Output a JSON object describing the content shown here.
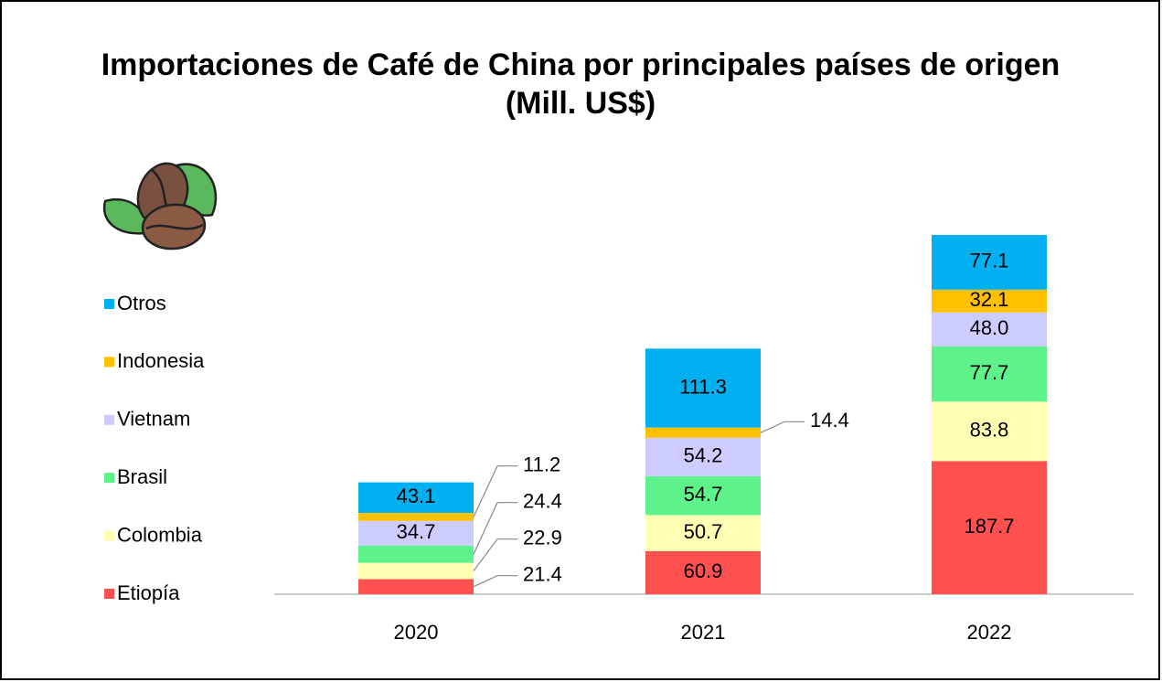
{
  "chart_data": {
    "type": "stacked_bar",
    "title": "Importaciones de Café de China por principales países de origen (Mill. US$)",
    "categories": [
      "2020",
      "2021",
      "2022"
    ],
    "series": [
      {
        "name": "Etiopía",
        "color": "#ff5050",
        "values": [
          21.4,
          60.9,
          187.7
        ],
        "value_labels": [
          "21.4",
          "60.9",
          "187.7"
        ]
      },
      {
        "name": "Colombia",
        "color": "#ffffb3",
        "values": [
          22.9,
          50.7,
          83.8
        ],
        "value_labels": [
          "22.9",
          "50.7",
          "83.8"
        ]
      },
      {
        "name": "Brasil",
        "color": "#5ef28a",
        "values": [
          24.4,
          54.7,
          77.7
        ],
        "value_labels": [
          "24.4",
          "54.7",
          "77.7"
        ]
      },
      {
        "name": "Vietnam",
        "color": "#ccccff",
        "values": [
          34.7,
          54.2,
          48.0
        ],
        "value_labels": [
          "34.7",
          "54.2",
          "48.0"
        ]
      },
      {
        "name": "Indonesia",
        "color": "#ffc000",
        "values": [
          11.2,
          14.4,
          32.1
        ],
        "value_labels": [
          "11.2",
          "14.4",
          "32.1"
        ]
      },
      {
        "name": "Otros",
        "color": "#00b0f0",
        "values": [
          43.1,
          111.3,
          77.1
        ],
        "value_labels": [
          "43.1",
          "111.3",
          "77.1"
        ]
      }
    ]
  }
}
